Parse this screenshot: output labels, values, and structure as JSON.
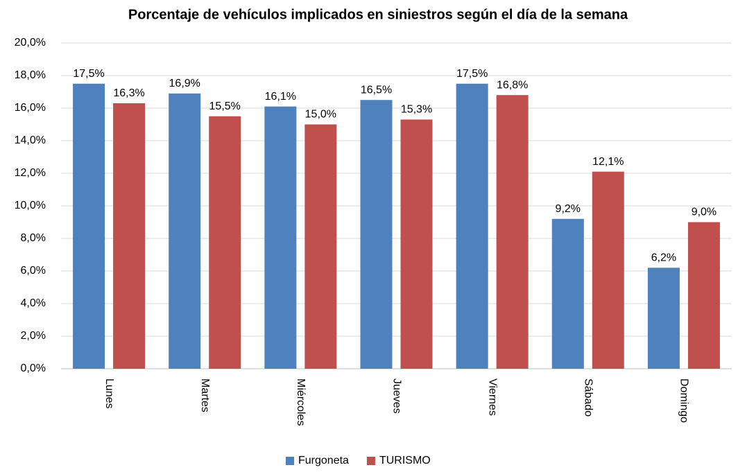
{
  "chart_data": {
    "type": "bar",
    "title": "Porcentaje de vehículos implicados en siniestros según el día de la semana",
    "categories": [
      "Lunes",
      "Martes",
      "Miércoles",
      "Jueves",
      "Viernes",
      "Sábado",
      "Domingo"
    ],
    "series": [
      {
        "name": "Furgoneta",
        "color": "#4f81bd",
        "values": [
          17.5,
          16.9,
          16.1,
          16.5,
          17.5,
          9.2,
          6.2
        ],
        "value_labels": [
          "17,5%",
          "16,9%",
          "16,1%",
          "16,5%",
          "17,5%",
          "9,2%",
          "6,2%"
        ]
      },
      {
        "name": "TURISMO",
        "color": "#c0504d",
        "values": [
          16.3,
          15.5,
          15.0,
          15.3,
          16.8,
          12.1,
          9.0
        ],
        "value_labels": [
          "16,3%",
          "15,5%",
          "15,0%",
          "15,3%",
          "16,8%",
          "12,1%",
          "9,0%"
        ]
      }
    ],
    "ylim": [
      0,
      20
    ],
    "yticks": [
      {
        "value": 0,
        "label": "0,0%"
      },
      {
        "value": 2,
        "label": "2,0%"
      },
      {
        "value": 4,
        "label": "4,0%"
      },
      {
        "value": 6,
        "label": "6,0%"
      },
      {
        "value": 8,
        "label": "8,0%"
      },
      {
        "value": 10,
        "label": "10,0%"
      },
      {
        "value": 12,
        "label": "12,0%"
      },
      {
        "value": 14,
        "label": "14,0%"
      },
      {
        "value": 16,
        "label": "16,0%"
      },
      {
        "value": 18,
        "label": "18,0%"
      },
      {
        "value": 20,
        "label": "20,0%"
      }
    ],
    "grid": true,
    "legend": "bottom"
  }
}
